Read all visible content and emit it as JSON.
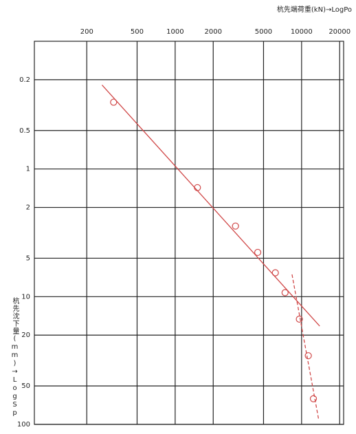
{
  "chart_data": {
    "type": "scatter",
    "x_label": "杭先端荷重(kN)→LogPo",
    "y_label": "杭先沈下量(mm)→LogSp",
    "x_scale": "log",
    "y_scale": "log",
    "y_inverted": true,
    "grid": true,
    "xlim": [
      77,
      21500
    ],
    "ylim": [
      0.1,
      100
    ],
    "xticks": [
      200,
      500,
      1000,
      2000,
      5000,
      10000,
      20000
    ],
    "yticks": [
      0.2,
      0.5,
      1,
      2,
      5,
      10,
      20,
      50,
      100
    ],
    "series": [
      {
        "color": "#d04848",
        "marker": "circle",
        "x": [
          326,
          1500,
          3000,
          4500,
          6200,
          7400,
          9600,
          11300,
          12400
        ],
        "values": [
          0.3,
          1.4,
          2.8,
          4.5,
          6.5,
          9.3,
          15,
          29,
          63
        ]
      },
      {
        "color": "#d04848",
        "line": "solid",
        "x": [
          264,
          13900
        ],
        "values": [
          0.22,
          17
        ]
      },
      {
        "color": "#d04848",
        "line": "dashed",
        "x": [
          8400,
          13600
        ],
        "values": [
          6.7,
          90
        ]
      }
    ]
  }
}
